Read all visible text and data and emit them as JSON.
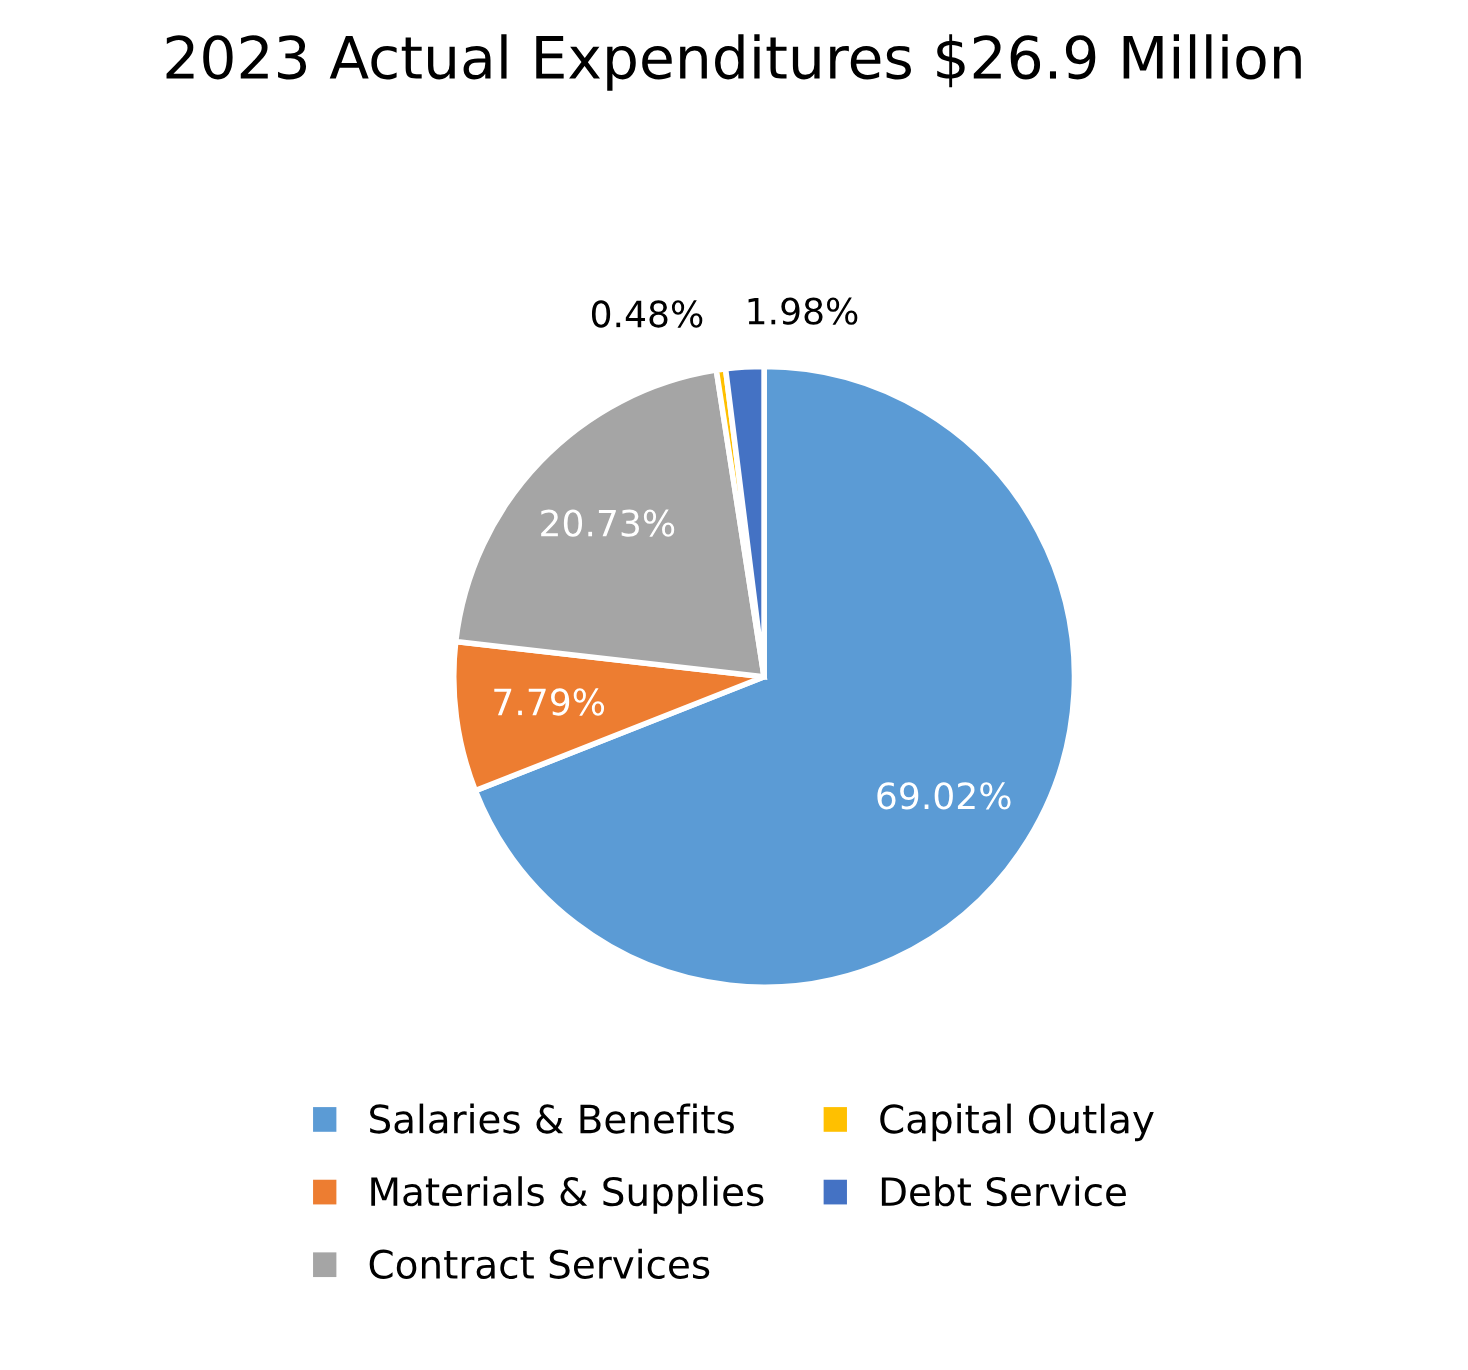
{
  "chart_data": {
    "type": "pie",
    "title": "2023 Actual Expenditures $26.9 Million",
    "categories": [
      "Salaries & Benefits",
      "Materials & Supplies",
      "Contract Services",
      "Capital Outlay",
      "Debt Service"
    ],
    "values": [
      69.02,
      7.79,
      20.73,
      0.48,
      1.98
    ],
    "colors": [
      "#5b9bd5",
      "#ed7d31",
      "#a5a5a5",
      "#ffc000",
      "#4472c4"
    ],
    "value_labels": [
      "69.02%",
      "7.79%",
      "20.73%",
      "0.48%",
      "1.98%"
    ],
    "legend": "bottom"
  }
}
